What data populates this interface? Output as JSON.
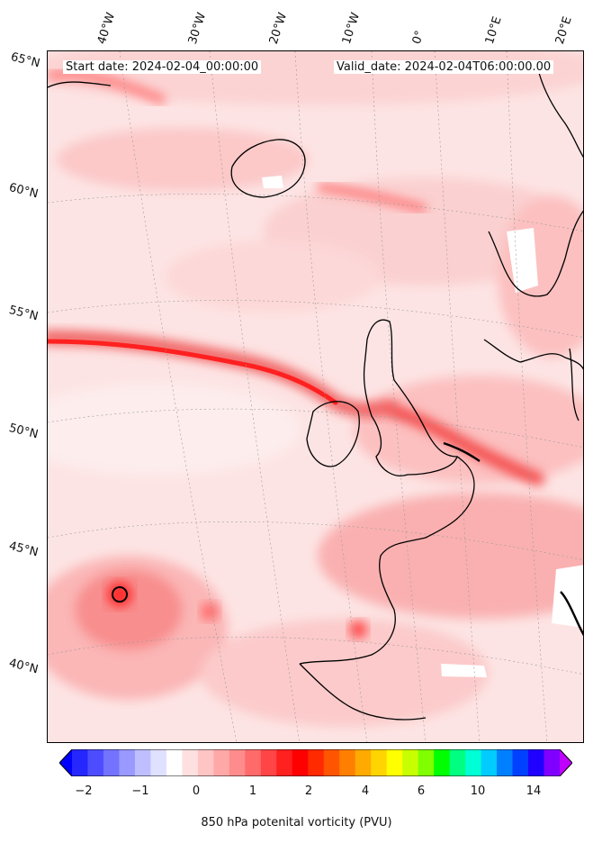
{
  "header": {
    "start_date": "Start date: 2024-02-04_00:00:00",
    "valid_date": "Valid_date: 2024-02-04T06:00:00.00"
  },
  "map": {
    "longitude_labels": [
      "40°W",
      "30°W",
      "20°W",
      "10°W",
      "0°",
      "10°E",
      "20°E"
    ],
    "latitude_labels": [
      "65°N",
      "60°N",
      "55°N",
      "50°N",
      "45°N",
      "40°N"
    ],
    "field": "850 hPa potential vorticity",
    "units": "PVU"
  },
  "colorbar": {
    "label": "850 hPa potenital vorticity (PVU)",
    "tick_labels": [
      "−2",
      "−1",
      "0",
      "1",
      "2",
      "4",
      "6",
      "10",
      "14"
    ],
    "colors": [
      "#0000ff",
      "#2626ff",
      "#4d4dff",
      "#7373ff",
      "#9999ff",
      "#bfbfff",
      "#e0e0ff",
      "#ffffff",
      "#ffe0e0",
      "#ffc4c4",
      "#ffa8a8",
      "#ff8c8c",
      "#ff6b6b",
      "#ff4545",
      "#ff2020",
      "#ff0000",
      "#ff2a00",
      "#ff5500",
      "#ff8000",
      "#ffaa00",
      "#ffd400",
      "#ffff00",
      "#c8ff00",
      "#80ff00",
      "#00ff00",
      "#00ff80",
      "#00ffd4",
      "#00ccff",
      "#0080ff",
      "#0040ff",
      "#2000ff",
      "#8000ff",
      "#c000ff"
    ]
  }
}
